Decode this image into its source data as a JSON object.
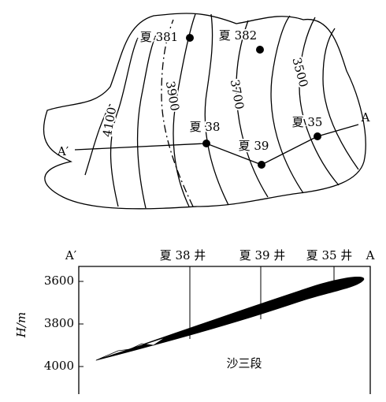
{
  "map": {
    "wells": [
      {
        "label": "夏 381"
      },
      {
        "label": "夏 382"
      },
      {
        "label": "夏 38"
      },
      {
        "label": "夏 39"
      },
      {
        "label": "夏 35"
      }
    ],
    "contours": [
      4100,
      3900,
      3700,
      3500
    ],
    "section_line": {
      "start": "A′",
      "end": "A"
    }
  },
  "section": {
    "top_labels": {
      "start": "A′",
      "wells": [
        "夏 38 井",
        "夏 39 井",
        "夏 35 井"
      ],
      "end": "A"
    },
    "y_axis": {
      "label": "H/m",
      "ticks": [
        3600,
        3800,
        4000
      ]
    },
    "unit_label": "沙三段"
  }
}
